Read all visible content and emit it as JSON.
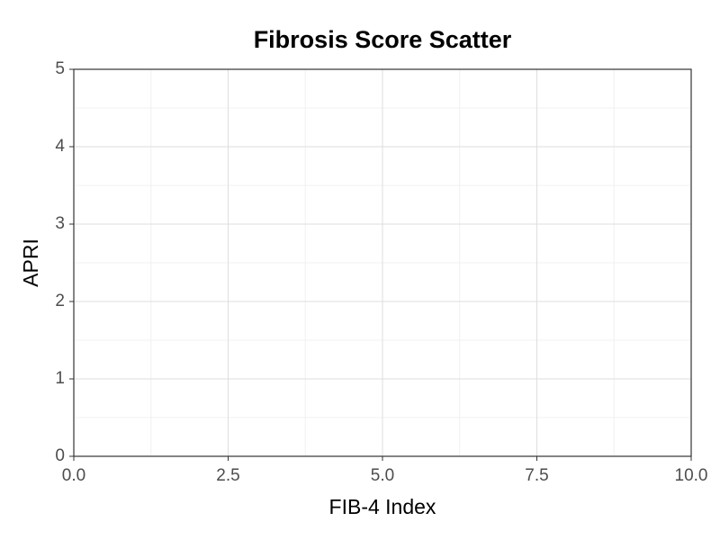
{
  "chart_data": {
    "type": "scatter",
    "title": "Fibrosis Score Scatter",
    "x_label": "FIB-4 Index",
    "y_label": "APRI",
    "x": [],
    "y": [],
    "xlim": [
      0,
      10
    ],
    "xticks": [
      {
        "value": 0,
        "label": "0.0"
      },
      2.5,
      {
        "value": 5,
        "label": "5.0"
      },
      7.5,
      {
        "value": 10,
        "label": "10.0"
      }
    ],
    "xminorticks": [
      1.25,
      3.75,
      6.25,
      8.75
    ],
    "ylim": [
      0,
      5
    ],
    "yticks": [
      0,
      1,
      2,
      3,
      4,
      5
    ],
    "yminorticks": [
      0.5,
      1.5,
      2.5,
      3.5,
      4.5
    ],
    "grid": true
  }
}
